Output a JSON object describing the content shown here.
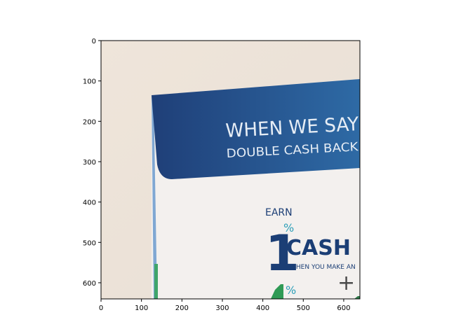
{
  "chart_data": {
    "type": "image",
    "xlim": [
      0,
      640
    ],
    "ylim": [
      640,
      0
    ],
    "x_ticks": [
      "0",
      "100",
      "200",
      "300",
      "400",
      "500",
      "600"
    ],
    "y_ticks": [
      "0",
      "100",
      "200",
      "300",
      "400",
      "500",
      "600"
    ],
    "grid": false
  },
  "photo": {
    "headline_1": "WHEN WE SAY",
    "headline_2": "DOUBLE CASH BACK",
    "earn": "EARN",
    "big_digit": "1",
    "percent": "%",
    "cash": "CASH B",
    "subline": "WHEN YOU MAKE AN",
    "plus": "+",
    "percent_2": "%",
    "colors": {
      "wall": "#efe6dc",
      "banner": "#2a5a92",
      "banner_dark": "#1f3f78",
      "text_navy": "#1b3e75",
      "accent_teal": "#2d9fb8",
      "accent_green": "#2f9a55"
    }
  }
}
